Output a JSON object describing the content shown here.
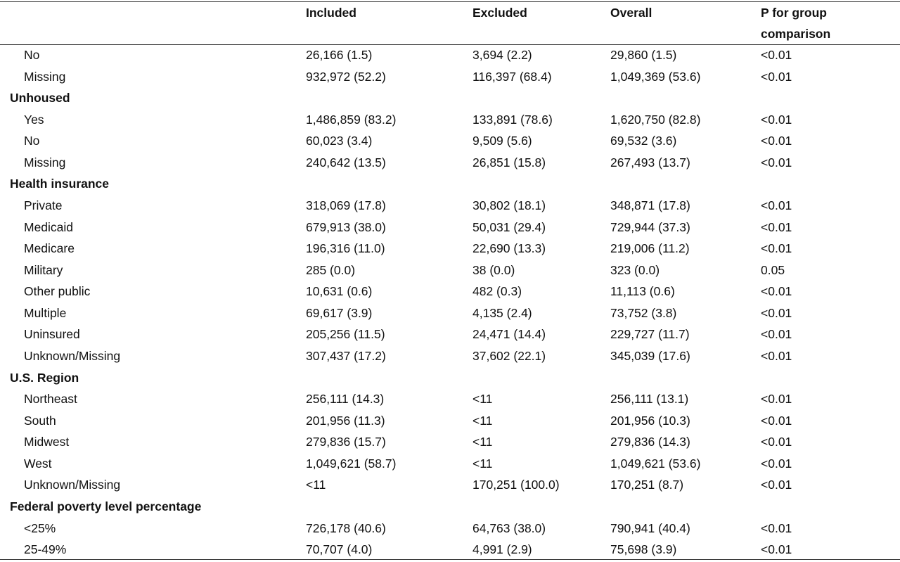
{
  "table": {
    "columns": [
      "Included",
      "Excluded",
      "Overall",
      "P for group comparison"
    ],
    "rows": [
      {
        "label": "No",
        "cells": [
          "26,166 (1.5)",
          "3,694 (2.2)",
          "29,860 (1.5)",
          "<0.01"
        ]
      },
      {
        "label": "Missing",
        "cells": [
          "932,972 (52.2)",
          "116,397 (68.4)",
          "1,049,369 (53.6)",
          "<0.01"
        ]
      },
      {
        "label": "Unhoused",
        "section": true
      },
      {
        "label": "Yes",
        "cells": [
          "1,486,859 (83.2)",
          "133,891 (78.6)",
          "1,620,750 (82.8)",
          "<0.01"
        ]
      },
      {
        "label": "No",
        "cells": [
          "60,023 (3.4)",
          "9,509 (5.6)",
          "69,532 (3.6)",
          "<0.01"
        ]
      },
      {
        "label": "Missing",
        "cells": [
          "240,642 (13.5)",
          "26,851 (15.8)",
          "267,493 (13.7)",
          "<0.01"
        ]
      },
      {
        "label": "Health insurance",
        "section": true
      },
      {
        "label": "Private",
        "cells": [
          "318,069 (17.8)",
          "30,802 (18.1)",
          "348,871 (17.8)",
          "<0.01"
        ]
      },
      {
        "label": "Medicaid",
        "cells": [
          "679,913 (38.0)",
          "50,031 (29.4)",
          "729,944 (37.3)",
          "<0.01"
        ]
      },
      {
        "label": "Medicare",
        "cells": [
          "196,316 (11.0)",
          "22,690 (13.3)",
          "219,006 (11.2)",
          "<0.01"
        ]
      },
      {
        "label": "Military",
        "cells": [
          "285 (0.0)",
          "38 (0.0)",
          "323 (0.0)",
          "0.05"
        ]
      },
      {
        "label": "Other public",
        "cells": [
          "10,631 (0.6)",
          "482 (0.3)",
          "11,113 (0.6)",
          "<0.01"
        ]
      },
      {
        "label": "Multiple",
        "cells": [
          "69,617 (3.9)",
          "4,135 (2.4)",
          "73,752 (3.8)",
          "<0.01"
        ]
      },
      {
        "label": "Uninsured",
        "cells": [
          "205,256 (11.5)",
          "24,471 (14.4)",
          "229,727 (11.7)",
          "<0.01"
        ]
      },
      {
        "label": "Unknown/Missing",
        "cells": [
          "307,437 (17.2)",
          "37,602 (22.1)",
          "345,039 (17.6)",
          "<0.01"
        ]
      },
      {
        "label": "U.S. Region",
        "section": true
      },
      {
        "label": "Northeast",
        "cells": [
          "256,111 (14.3)",
          "<11",
          "256,111 (13.1)",
          "<0.01"
        ]
      },
      {
        "label": "South",
        "cells": [
          "201,956 (11.3)",
          "<11",
          "201,956 (10.3)",
          "<0.01"
        ]
      },
      {
        "label": "Midwest",
        "cells": [
          "279,836 (15.7)",
          "<11",
          "279,836 (14.3)",
          "<0.01"
        ]
      },
      {
        "label": "West",
        "cells": [
          "1,049,621 (58.7)",
          "<11",
          "1,049,621 (53.6)",
          "<0.01"
        ]
      },
      {
        "label": "Unknown/Missing",
        "cells": [
          "<11",
          "170,251 (100.0)",
          "170,251 (8.7)",
          "<0.01"
        ]
      },
      {
        "label": "Federal poverty level percentage",
        "section": true
      },
      {
        "label": "<25%",
        "cells": [
          "726,178 (40.6)",
          "64,763 (38.0)",
          "790,941 (40.4)",
          "<0.01"
        ]
      },
      {
        "label": "25-49%",
        "cells": [
          "70,707 (4.0)",
          "4,991 (2.9)",
          "75,698 (3.9)",
          "<0.01"
        ]
      }
    ]
  }
}
